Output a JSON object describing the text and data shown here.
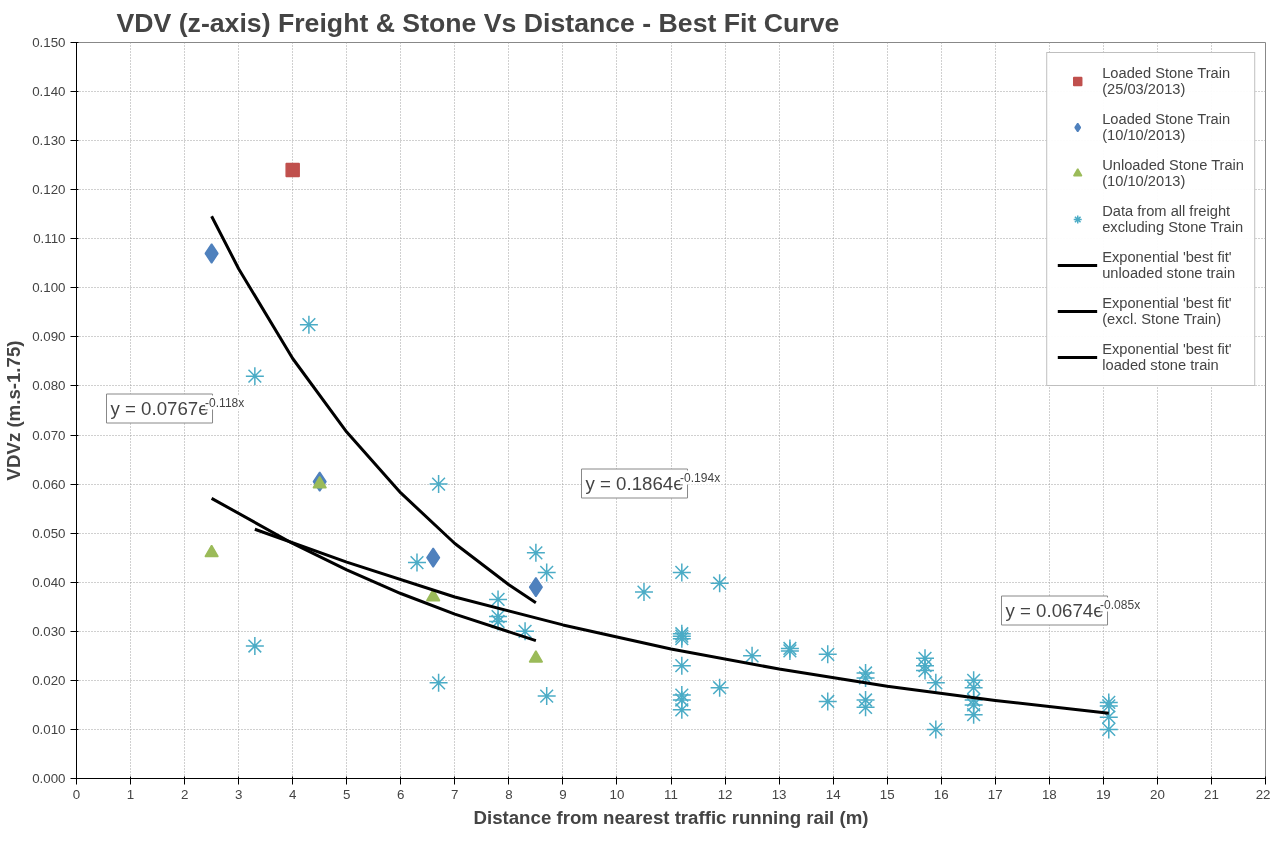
{
  "chart_data": {
    "type": "scatter",
    "title": "VDV (z-axis) Freight & Stone Vs Distance - Best Fit Curve",
    "xlabel": "Distance from nearest traffic running rail (m)",
    "ylabel": "VDVz (m.s-1.75)",
    "xlim": [
      0,
      22
    ],
    "xticks": [
      0,
      1,
      2,
      3,
      4,
      5,
      6,
      7,
      8,
      9,
      10,
      11,
      12,
      13,
      14,
      15,
      16,
      17,
      18,
      19,
      20,
      21,
      22
    ],
    "ylim": [
      0,
      0.15
    ],
    "yticks": [
      {
        "value": 0,
        "label": "0.000"
      },
      {
        "value": 0.01,
        "label": "0.010"
      },
      {
        "value": 0.02,
        "label": "0.020"
      },
      {
        "value": 0.03,
        "label": "0.030"
      },
      {
        "value": 0.04,
        "label": "0.040"
      },
      {
        "value": 0.05,
        "label": "0.050"
      },
      {
        "value": 0.06,
        "label": "0.060"
      },
      {
        "value": 0.07,
        "label": "0.070"
      },
      {
        "value": 0.08,
        "label": "0.080"
      },
      {
        "value": 0.09,
        "label": "0.090"
      },
      {
        "value": 0.1,
        "label": "0.100"
      },
      {
        "value": 0.11,
        "label": "0.110"
      },
      {
        "value": 0.12,
        "label": "0.120"
      },
      {
        "value": 0.13,
        "label": "0.130"
      },
      {
        "value": 0.14,
        "label": "0.140"
      },
      {
        "value": 0.15,
        "label": "0.150"
      }
    ],
    "grid": true,
    "legend": "top right",
    "series": [
      {
        "name": "Loaded Stone Train (25/03/2013)",
        "type": "scatter",
        "marker": "square",
        "color": "#c0504d",
        "x": [
          4
        ],
        "values": [
          0.124
        ]
      },
      {
        "name": "Loaded Stone Train (10/10/2013)",
        "type": "scatter",
        "marker": "diamond",
        "color": "#4f81bd",
        "x": [
          2.5,
          4.5,
          6.6,
          8.5
        ],
        "values": [
          0.107,
          0.0605,
          0.045,
          0.039
        ]
      },
      {
        "name": "Unloaded Stone Train (10/10/2013)",
        "type": "scatter",
        "marker": "triangle",
        "color": "#9bbb59",
        "x": [
          2.5,
          4.5,
          6.6,
          8.5
        ],
        "values": [
          0.046,
          0.06,
          0.037,
          0.0245
        ]
      },
      {
        "name": "Data from all freight excluding Stone Train",
        "type": "scatter",
        "marker": "cross",
        "color": "#4bacc6",
        "x": [
          3.3,
          3.3,
          4.3,
          6.3,
          6.7,
          6.7,
          7.8,
          7.8,
          7.8,
          8.3,
          8.5,
          8.7,
          8.7,
          10.5,
          11.2,
          11.2,
          11.2,
          11.2,
          11.2,
          11.2,
          11.2,
          11.2,
          11.9,
          11.9,
          12.5,
          13.2,
          13.2,
          13.9,
          13.9,
          14.6,
          14.6,
          14.6,
          14.6,
          15.7,
          15.7,
          15.7,
          15.9,
          15.9,
          16.6,
          16.6,
          16.6,
          16.6,
          16.6,
          19.1,
          19.1,
          19.1,
          19.1
        ],
        "values": [
          0.082,
          0.027,
          0.0925,
          0.044,
          0.06,
          0.0195,
          0.0365,
          0.033,
          0.032,
          0.03,
          0.046,
          0.042,
          0.0168,
          0.038,
          0.042,
          0.0295,
          0.029,
          0.0285,
          0.023,
          0.017,
          0.016,
          0.014,
          0.0398,
          0.0185,
          0.025,
          0.0265,
          0.026,
          0.0253,
          0.0157,
          0.0215,
          0.0205,
          0.016,
          0.0145,
          0.0245,
          0.023,
          0.022,
          0.0195,
          0.01,
          0.02,
          0.0185,
          0.016,
          0.015,
          0.013,
          0.0155,
          0.0148,
          0.0125,
          0.01
        ]
      },
      {
        "name": "Exponential 'best fit' unloaded stone train",
        "type": "line",
        "marker": "none",
        "line_style": "solid",
        "color": "#000000",
        "x": [
          2.5,
          4,
          5,
          6,
          7,
          8.5
        ],
        "values": [
          0.0571,
          0.0479,
          0.0425,
          0.0377,
          0.0335,
          0.0281
        ]
      },
      {
        "name": "Exponential 'best fit' (excl. Stone Train)",
        "type": "line",
        "marker": "none",
        "line_style": "solid",
        "color": "#000000",
        "x": [
          3.3,
          5,
          7,
          9,
          11,
          13,
          15,
          17,
          19.1
        ],
        "values": [
          0.0508,
          0.0441,
          0.037,
          0.0313,
          0.0264,
          0.0223,
          0.0188,
          0.0159,
          0.0133
        ]
      },
      {
        "name": "Exponential 'best fit' loaded stone train",
        "type": "line",
        "marker": "none",
        "line_style": "solid",
        "color": "#000000",
        "x": [
          2.5,
          3,
          4,
          5,
          6,
          7,
          8,
          8.5
        ],
        "values": [
          0.1146,
          0.1039,
          0.0856,
          0.0706,
          0.0582,
          0.0479,
          0.0395,
          0.0358
        ]
      }
    ],
    "annotations": [
      "y = 0.0767e$^{-0.118x}$",
      "y = 0.1864e$^{-0.194x}$",
      "y = 0.0674e$^{-0.085x}$"
    ]
  }
}
